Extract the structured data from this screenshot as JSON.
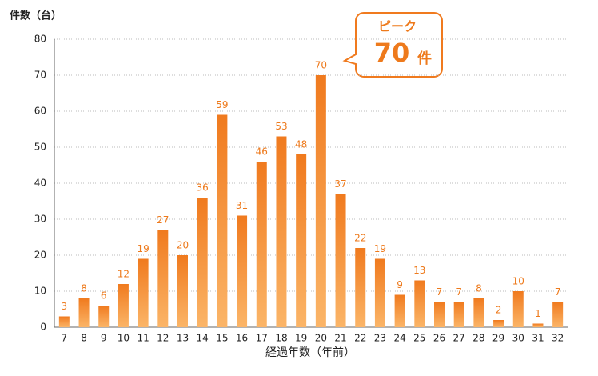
{
  "chart_data": {
    "type": "bar",
    "title": "件数（台）",
    "x_label": "経過年数（年前）",
    "categories": [
      "7",
      "8",
      "9",
      "10",
      "11",
      "12",
      "13",
      "14",
      "15",
      "16",
      "17",
      "18",
      "19",
      "20",
      "21",
      "22",
      "23",
      "24",
      "25",
      "26",
      "27",
      "28",
      "29",
      "30",
      "31",
      "32"
    ],
    "values": [
      3,
      8,
      6,
      12,
      19,
      27,
      20,
      36,
      59,
      31,
      46,
      53,
      48,
      70,
      37,
      22,
      19,
      9,
      13,
      7,
      7,
      8,
      2,
      10,
      1,
      7
    ],
    "color": "#f07a1e",
    "ylim": [
      0,
      80
    ],
    "yticks": [
      0,
      10,
      20,
      30,
      40,
      50,
      60,
      70,
      80
    ],
    "grid": true,
    "annotation": {
      "label": "ピーク",
      "value": "70",
      "unit": "件"
    }
  }
}
